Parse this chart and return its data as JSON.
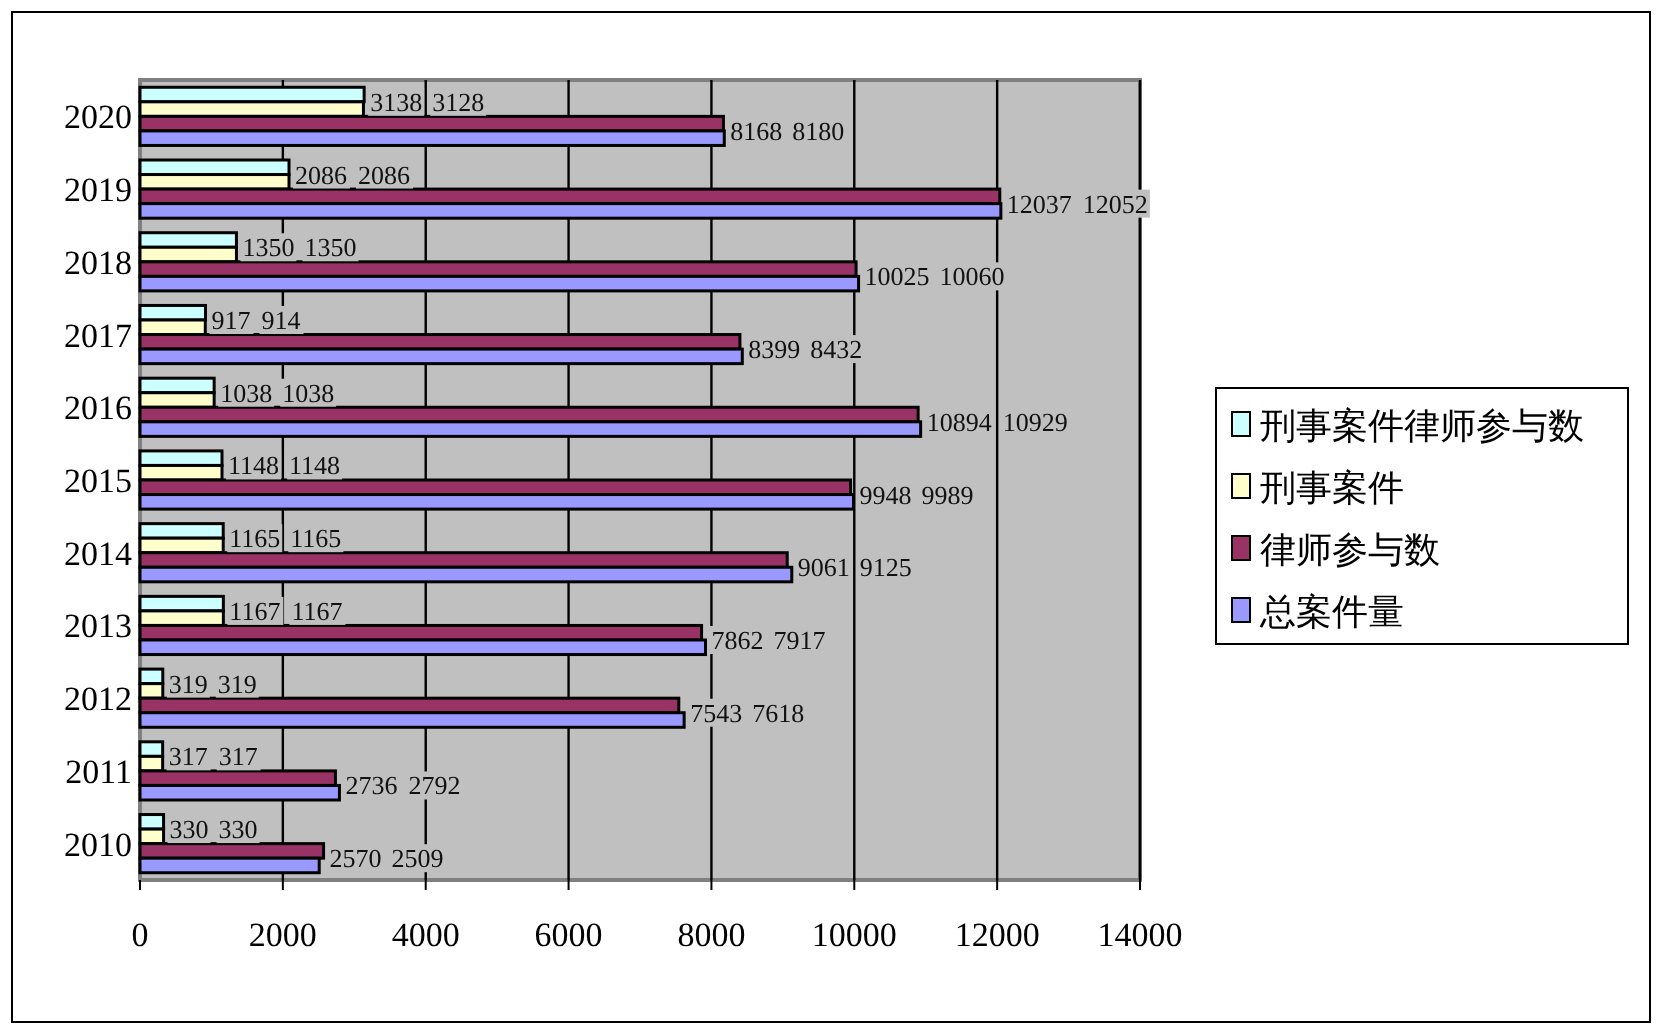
{
  "chart_data": {
    "type": "bar",
    "orientation": "horizontal",
    "categories": [
      "2020",
      "2019",
      "2018",
      "2017",
      "2016",
      "2015",
      "2014",
      "2013",
      "2012",
      "2011",
      "2010"
    ],
    "series": [
      {
        "name": "刑事案件律师参与数",
        "color": "#ccffff",
        "values": [
          3138,
          2086,
          1350,
          917,
          1038,
          1148,
          1165,
          1167,
          319,
          317,
          330
        ]
      },
      {
        "name": "刑事案件",
        "color": "#ffffcc",
        "values": [
          3128,
          2086,
          1350,
          914,
          1038,
          1148,
          1165,
          1167,
          319,
          317,
          330
        ]
      },
      {
        "name": "律师参与数",
        "color": "#993366",
        "values": [
          8168,
          12037,
          10025,
          8399,
          10894,
          9948,
          9061,
          7862,
          7543,
          2736,
          2570
        ]
      },
      {
        "name": "总案件量",
        "color": "#9999ff",
        "values": [
          8180,
          12052,
          10060,
          8432,
          10929,
          9989,
          9125,
          7917,
          7618,
          2792,
          2509
        ]
      }
    ],
    "xlim": [
      0,
      14000
    ],
    "xticks": [
      0,
      2000,
      4000,
      6000,
      8000,
      10000,
      12000,
      14000
    ],
    "grid": "x",
    "legend": "right",
    "data_labels": true
  }
}
